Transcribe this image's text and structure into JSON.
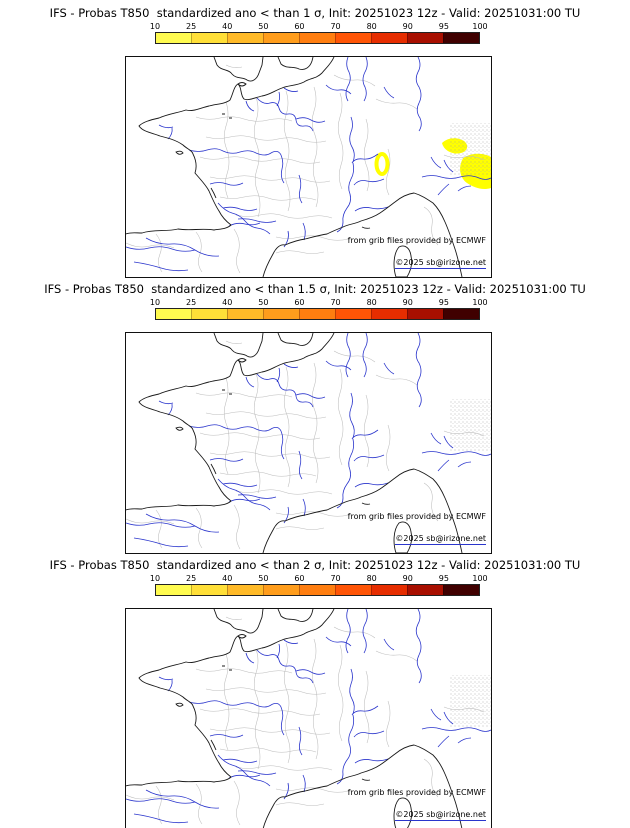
{
  "page": {
    "background": "#ffffff"
  },
  "colorbar": {
    "ticks": [
      "10",
      "25",
      "40",
      "50",
      "60",
      "70",
      "80",
      "90",
      "95",
      "100"
    ],
    "colors": [
      "#fffb50",
      "#ffdf38",
      "#ffba28",
      "#ff9d1c",
      "#ff7e10",
      "#ff5506",
      "#e62d00",
      "#a80f00",
      "#400000"
    ]
  },
  "map": {
    "river_color": "#2a35cc",
    "coast_color": "#1a1a1a",
    "boundary_color": "#bdbdbd",
    "highlight_color": "#ffff00"
  },
  "panels": [
    {
      "id": "sigma-1",
      "title": "IFS - Probas T850  standardized ano < than 1 σ, Init: 20251023 12z - Valid: 20251031:00 TU",
      "credit_ecmwf": "from grib files provided by ECMWF",
      "credit_copyright": "©2025 sb@irizone.net",
      "has_probability_shading": true
    },
    {
      "id": "sigma-1.5",
      "title": "IFS - Probas T850  standardized ano < than 1.5 σ, Init: 20251023 12z - Valid: 20251031:00 TU",
      "credit_ecmwf": "from grib files provided by ECMWF",
      "credit_copyright": "©2025 sb@irizone.net",
      "has_probability_shading": false
    },
    {
      "id": "sigma-2",
      "title": "IFS - Probas T850  standardized ano < than 2 σ, Init: 20251023 12z - Valid: 20251031:00 TU",
      "credit_ecmwf": "from grib files provided by ECMWF",
      "credit_copyright": "©2025 sb@irizone.net",
      "has_probability_shading": false
    }
  ]
}
